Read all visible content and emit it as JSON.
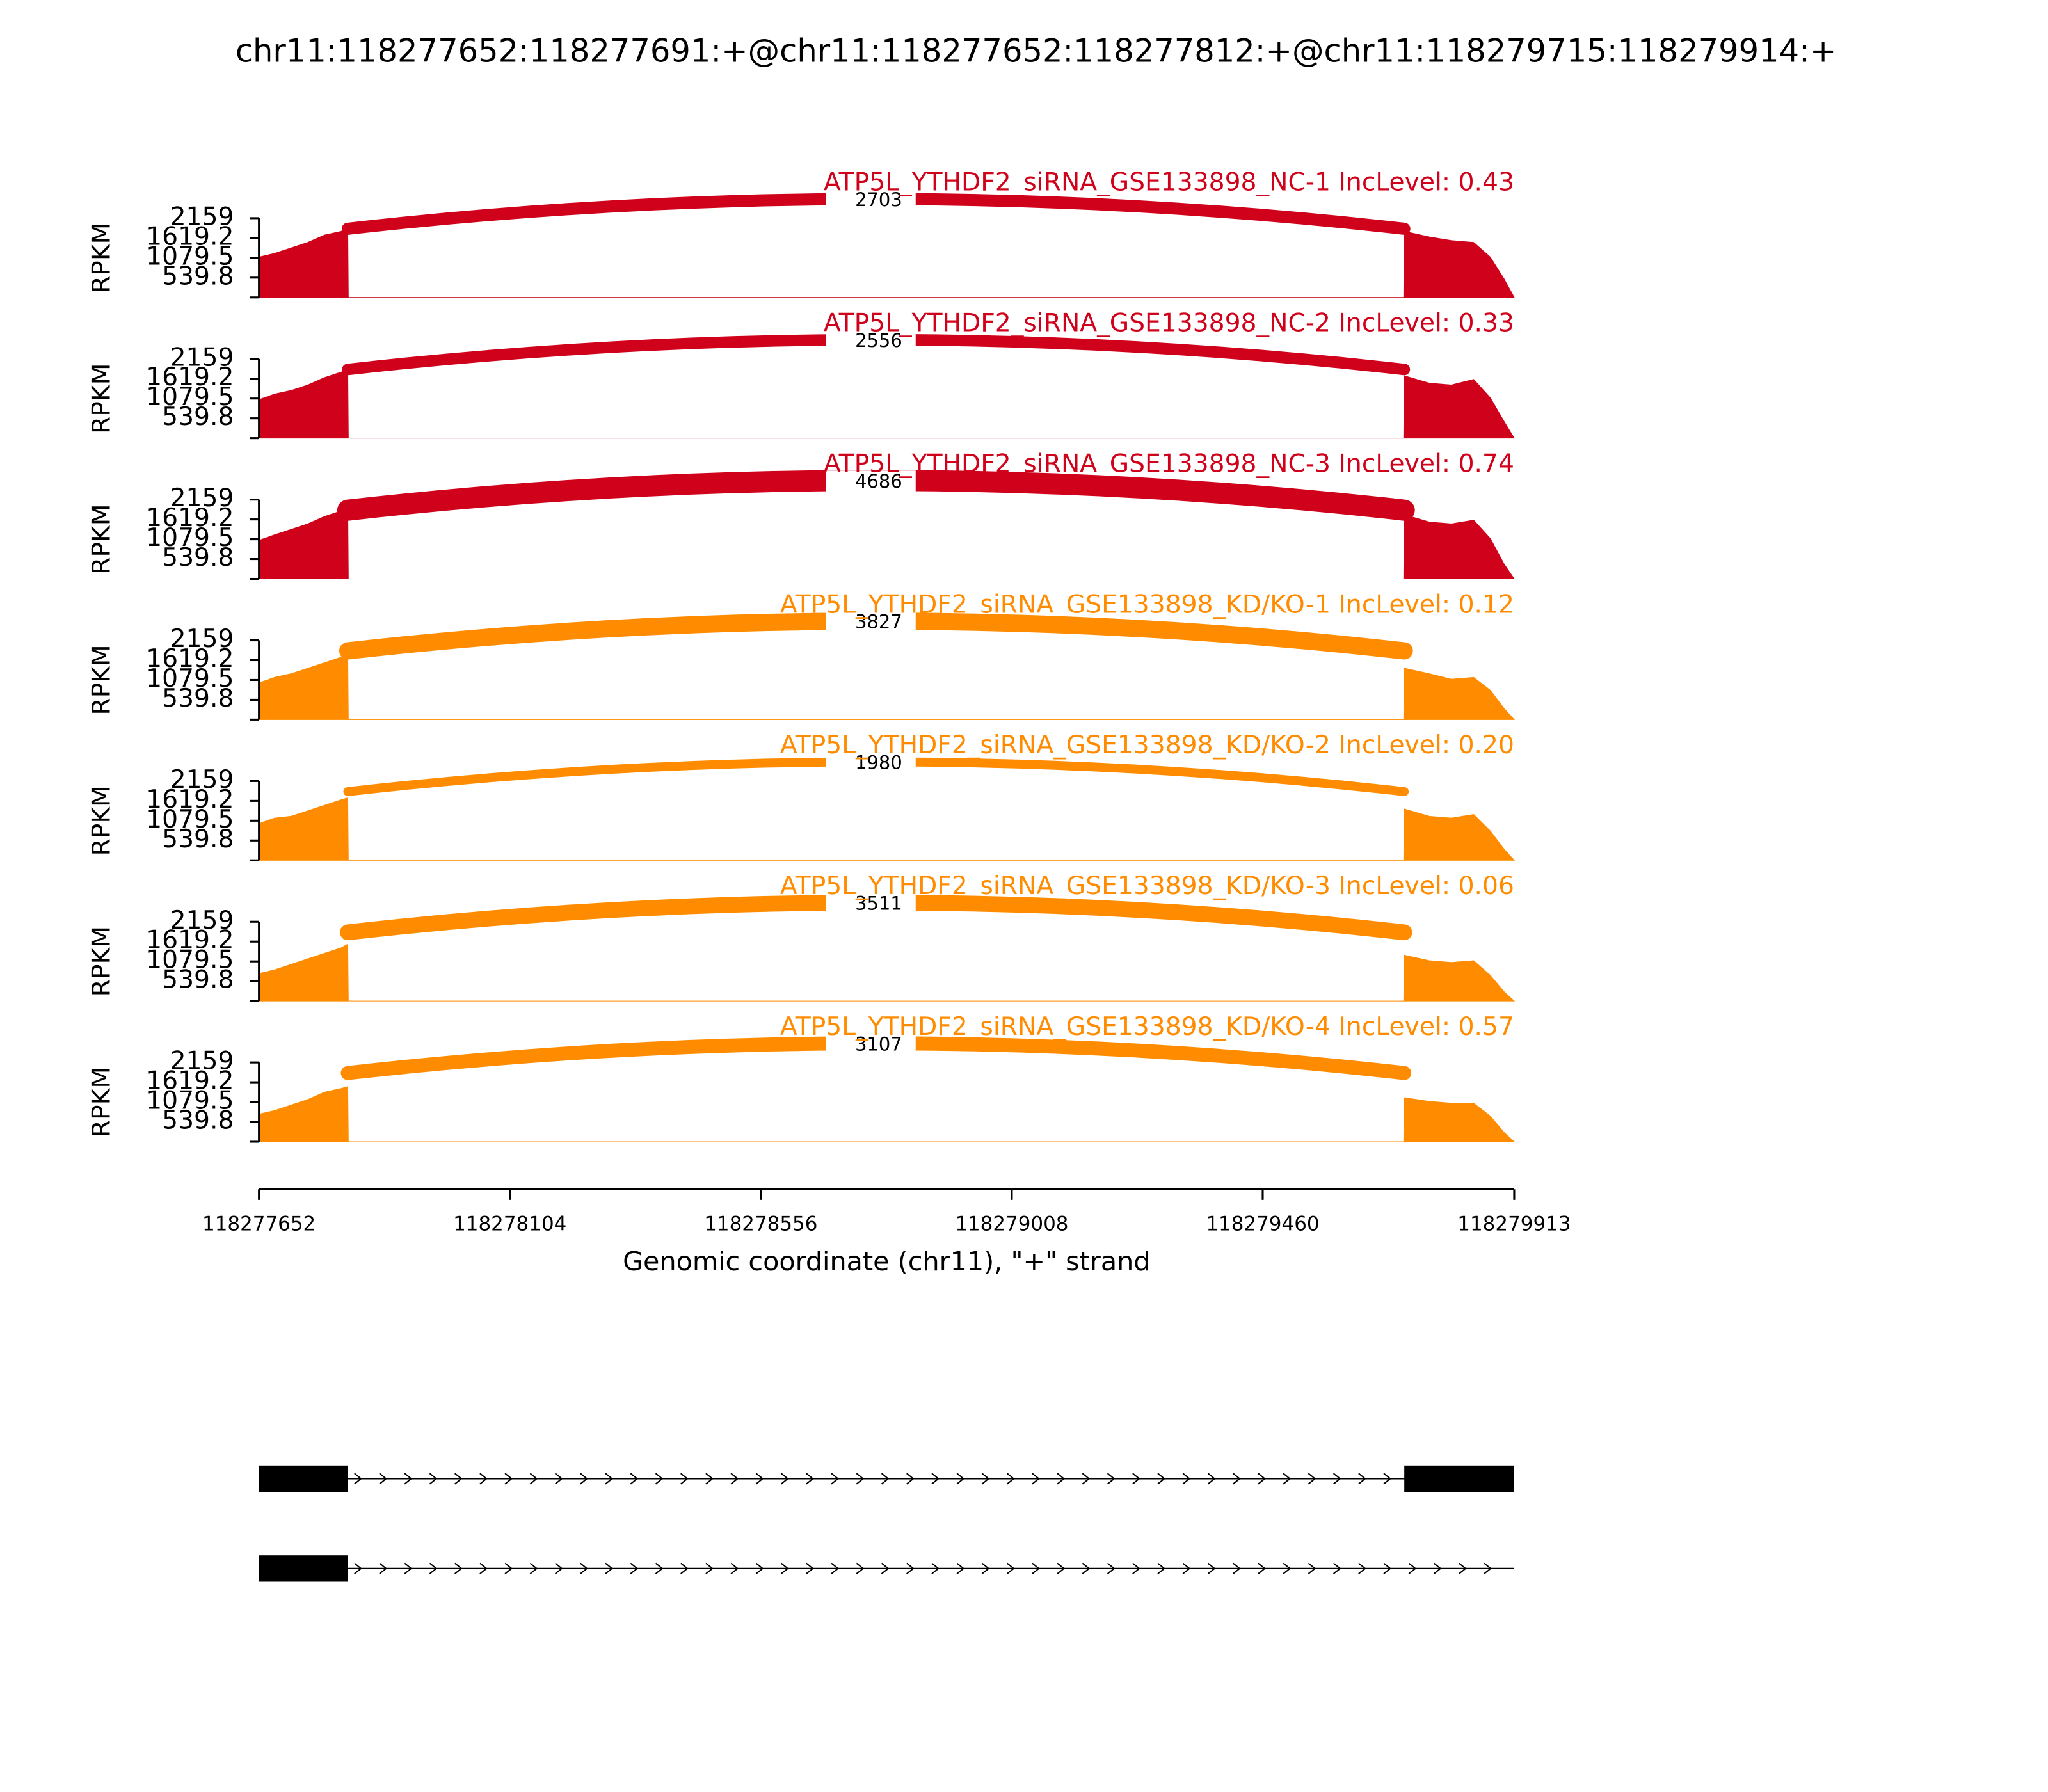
{
  "chart_data": {
    "type": "sashimi",
    "title": "chr11:118277652:118277691:+@chr11:118277652:118277812:+@chr11:118279715:118279914:+",
    "xlabel": "Genomic coordinate (chr11), \"+\" strand",
    "ylabel": "RPKM",
    "xlim": [
      118277652,
      118279913
    ],
    "xticks": [
      118277652,
      118278104,
      118278556,
      118279008,
      118279460,
      118279913
    ],
    "ylim": [
      0,
      2159
    ],
    "yticks": [
      539.8,
      1079.5,
      1619.2,
      2159
    ],
    "panels": [
      {
        "name": "ATP5L_YTHDF2_siRNA_GSE133898_NC-1 IncLevel: 0.43",
        "color": "#d0021b",
        "junction": {
          "start": 118277812,
          "end": 118279715,
          "count": 2703
        },
        "coverage": {
          "x": [
            118277652,
            118277680,
            118277710,
            118277740,
            118277770,
            118277800,
            118277812,
            118277813,
            118279714,
            118279715,
            118279760,
            118279800,
            118279840,
            118279870,
            118279895,
            118279913
          ],
          "values": [
            1100,
            1200,
            1350,
            1500,
            1700,
            1800,
            1900,
            0,
            0,
            1800,
            1650,
            1550,
            1500,
            1100,
            500,
            0
          ]
        }
      },
      {
        "name": "ATP5L_YTHDF2_siRNA_GSE133898_NC-2 IncLevel: 0.33",
        "color": "#d0021b",
        "junction": {
          "start": 118277812,
          "end": 118279715,
          "count": 2556
        },
        "coverage": {
          "x": [
            118277652,
            118277680,
            118277710,
            118277740,
            118277770,
            118277800,
            118277812,
            118277813,
            118279714,
            118279715,
            118279760,
            118279800,
            118279840,
            118279870,
            118279895,
            118279913
          ],
          "values": [
            1050,
            1200,
            1300,
            1450,
            1650,
            1800,
            1850,
            0,
            0,
            1700,
            1500,
            1450,
            1600,
            1100,
            450,
            0
          ]
        }
      },
      {
        "name": "ATP5L_YTHDF2_siRNA_GSE133898_NC-3 IncLevel: 0.74",
        "color": "#d0021b",
        "junction": {
          "start": 118277812,
          "end": 118279715,
          "count": 4686
        },
        "coverage": {
          "x": [
            118277652,
            118277680,
            118277710,
            118277740,
            118277770,
            118277800,
            118277812,
            118277813,
            118279714,
            118279715,
            118279760,
            118279800,
            118279840,
            118279870,
            118279895,
            118279913
          ],
          "values": [
            1050,
            1200,
            1350,
            1500,
            1700,
            1850,
            1950,
            0,
            0,
            1750,
            1550,
            1500,
            1600,
            1100,
            400,
            0
          ]
        }
      },
      {
        "name": "ATP5L_YTHDF2_siRNA_GSE133898_KD/KO-1 IncLevel: 0.12",
        "color": "#ff8c00",
        "junction": {
          "start": 118277812,
          "end": 118279715,
          "count": 3827
        },
        "coverage": {
          "x": [
            118277652,
            118277680,
            118277710,
            118277740,
            118277770,
            118277800,
            118277812,
            118277813,
            118279714,
            118279715,
            118279760,
            118279800,
            118279840,
            118279870,
            118279895,
            118279913
          ],
          "values": [
            1000,
            1150,
            1250,
            1400,
            1550,
            1700,
            1750,
            0,
            0,
            1400,
            1250,
            1100,
            1150,
            800,
            300,
            0
          ]
        }
      },
      {
        "name": "ATP5L_YTHDF2_siRNA_GSE133898_KD/KO-2 IncLevel: 0.20",
        "color": "#ff8c00",
        "junction": {
          "start": 118277812,
          "end": 118279715,
          "count": 1980
        },
        "coverage": {
          "x": [
            118277652,
            118277680,
            118277710,
            118277740,
            118277770,
            118277800,
            118277812,
            118277813,
            118279714,
            118279715,
            118279760,
            118279800,
            118279840,
            118279870,
            118279895,
            118279913
          ],
          "values": [
            1000,
            1150,
            1200,
            1350,
            1500,
            1650,
            1700,
            0,
            0,
            1400,
            1200,
            1150,
            1250,
            800,
            300,
            0
          ]
        }
      },
      {
        "name": "ATP5L_YTHDF2_siRNA_GSE133898_KD/KO-3 IncLevel: 0.06",
        "color": "#ff8c00",
        "junction": {
          "start": 118277812,
          "end": 118279715,
          "count": 3511
        },
        "coverage": {
          "x": [
            118277652,
            118277680,
            118277710,
            118277740,
            118277770,
            118277800,
            118277812,
            118277813,
            118279714,
            118279715,
            118279760,
            118279800,
            118279840,
            118279870,
            118279895,
            118279913
          ],
          "values": [
            750,
            850,
            1000,
            1150,
            1300,
            1450,
            1550,
            0,
            0,
            1250,
            1100,
            1050,
            1100,
            700,
            250,
            0
          ]
        }
      },
      {
        "name": "ATP5L_YTHDF2_siRNA_GSE133898_KD/KO-4 IncLevel: 0.57",
        "color": "#ff8c00",
        "junction": {
          "start": 118277812,
          "end": 118279715,
          "count": 3107
        },
        "coverage": {
          "x": [
            118277652,
            118277680,
            118277710,
            118277740,
            118277770,
            118277800,
            118277812,
            118277813,
            118279714,
            118279715,
            118279760,
            118279800,
            118279840,
            118279870,
            118279895,
            118279913
          ],
          "values": [
            750,
            850,
            1000,
            1150,
            1350,
            1450,
            1500,
            0,
            0,
            1200,
            1100,
            1050,
            1050,
            700,
            250,
            0
          ]
        }
      }
    ],
    "transcripts": [
      {
        "start": 118277652,
        "end": 118279914,
        "exons": [
          [
            118277652,
            118277812
          ],
          [
            118279715,
            118279914
          ]
        ]
      },
      {
        "start": 118277652,
        "end": 118279913,
        "exons": [
          [
            118277652,
            118277812
          ]
        ]
      }
    ]
  }
}
